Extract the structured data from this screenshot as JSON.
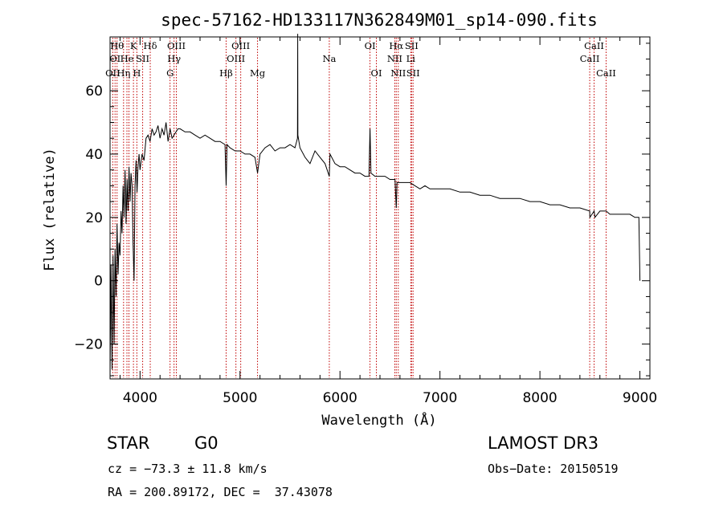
{
  "chart_data": {
    "type": "line",
    "title": "spec-57162-HD133117N362849M01_sp14-090.fits",
    "xlabel": "Wavelength (Å)",
    "ylabel": "Flux (relative)",
    "xlim": [
      3700,
      9100
    ],
    "ylim": [
      -31,
      77
    ],
    "xticks": [
      4000,
      5000,
      6000,
      7000,
      8000,
      9000
    ],
    "yticks": [
      -20,
      0,
      20,
      40,
      60
    ],
    "grid": false,
    "series": [
      {
        "name": "flux",
        "x": [
          3700,
          3710,
          3720,
          3730,
          3740,
          3750,
          3760,
          3770,
          3780,
          3790,
          3800,
          3810,
          3820,
          3830,
          3840,
          3850,
          3860,
          3870,
          3880,
          3890,
          3900,
          3910,
          3920,
          3930,
          3940,
          3950,
          3960,
          3970,
          3980,
          3990,
          4000,
          4020,
          4040,
          4060,
          4080,
          4100,
          4120,
          4140,
          4160,
          4180,
          4200,
          4220,
          4240,
          4260,
          4280,
          4300,
          4320,
          4340,
          4360,
          4380,
          4400,
          4450,
          4500,
          4550,
          4600,
          4650,
          4700,
          4750,
          4800,
          4850,
          4861,
          4870,
          4900,
          4950,
          5000,
          5050,
          5100,
          5150,
          5175,
          5200,
          5250,
          5300,
          5350,
          5400,
          5450,
          5500,
          5550,
          5575,
          5577,
          5579,
          5600,
          5650,
          5700,
          5750,
          5800,
          5850,
          5893,
          5900,
          5950,
          6000,
          6050,
          6100,
          6150,
          6200,
          6250,
          6290,
          6300,
          6310,
          6350,
          6400,
          6450,
          6500,
          6550,
          6563,
          6570,
          6600,
          6650,
          6700,
          6750,
          6800,
          6850,
          6900,
          6950,
          7000,
          7100,
          7200,
          7300,
          7400,
          7500,
          7600,
          7700,
          7800,
          7900,
          8000,
          8100,
          8200,
          8300,
          8400,
          8498,
          8500,
          8542,
          8550,
          8600,
          8662,
          8700,
          8800,
          8900,
          8950,
          8990,
          9000
        ],
        "values": [
          -30,
          5,
          -28,
          8,
          -20,
          10,
          -5,
          18,
          2,
          12,
          8,
          22,
          15,
          30,
          20,
          35,
          18,
          32,
          22,
          36,
          25,
          34,
          30,
          12,
          0,
          30,
          38,
          28,
          36,
          40,
          35,
          40,
          38,
          45,
          46,
          44,
          48,
          46,
          47,
          49,
          45,
          48,
          46,
          50,
          44,
          48,
          45,
          46,
          47,
          48,
          48,
          47,
          47,
          46,
          45,
          46,
          45,
          44,
          44,
          43,
          30,
          43,
          42,
          41,
          41,
          40,
          40,
          39,
          34,
          40,
          42,
          43,
          41,
          42,
          42,
          43,
          42,
          45,
          78,
          46,
          42,
          39,
          37,
          41,
          39,
          37,
          33,
          40,
          37,
          36,
          36,
          35,
          34,
          34,
          33,
          33,
          48,
          34,
          33,
          33,
          33,
          32,
          32,
          23,
          31,
          31,
          31,
          31,
          30,
          29,
          30,
          29,
          29,
          29,
          29,
          28,
          28,
          27,
          27,
          26,
          26,
          26,
          25,
          25,
          24,
          24,
          23,
          23,
          22,
          20,
          22,
          20,
          22,
          22,
          21,
          21,
          21,
          20,
          20,
          0
        ]
      }
    ],
    "line_markers": [
      {
        "wavelength": 3727,
        "label": "OII",
        "row": 3
      },
      {
        "wavelength": 3750,
        "label": "OI",
        "row": 2
      },
      {
        "wavelength": 3770,
        "label": "Hθ",
        "row": 1
      },
      {
        "wavelength": 3835,
        "label": "Hη",
        "row": 3
      },
      {
        "wavelength": 3869,
        "label": "He",
        "row": 2
      },
      {
        "wavelength": 3889,
        "label": "",
        "row": 0
      },
      {
        "wavelength": 3934,
        "label": "K",
        "row": 1
      },
      {
        "wavelength": 3968,
        "label": "H",
        "row": 3
      },
      {
        "wavelength": 4026,
        "label": "SII",
        "row": 2
      },
      {
        "wavelength": 4102,
        "label": "Hδ",
        "row": 1
      },
      {
        "wavelength": 4300,
        "label": "G",
        "row": 3
      },
      {
        "wavelength": 4340,
        "label": "Hγ",
        "row": 2
      },
      {
        "wavelength": 4363,
        "label": "OIII",
        "row": 1
      },
      {
        "wavelength": 4861,
        "label": "Hβ",
        "row": 3
      },
      {
        "wavelength": 4959,
        "label": "OIII",
        "row": 2
      },
      {
        "wavelength": 5007,
        "label": "OIII",
        "row": 1
      },
      {
        "wavelength": 5175,
        "label": "Mg",
        "row": 3
      },
      {
        "wavelength": 5893,
        "label": "Na",
        "row": 2
      },
      {
        "wavelength": 6300,
        "label": "OI",
        "row": 1
      },
      {
        "wavelength": 6364,
        "label": "OI",
        "row": 3
      },
      {
        "wavelength": 6548,
        "label": "NII",
        "row": 2
      },
      {
        "wavelength": 6563,
        "label": "Hα",
        "row": 1
      },
      {
        "wavelength": 6583,
        "label": "NII",
        "row": 3
      },
      {
        "wavelength": 6708,
        "label": "Li",
        "row": 2
      },
      {
        "wavelength": 6716,
        "label": "SII",
        "row": 1
      },
      {
        "wavelength": 6731,
        "label": "SII",
        "row": 3
      },
      {
        "wavelength": 8498,
        "label": "CaII",
        "row": 2
      },
      {
        "wavelength": 8542,
        "label": "CaII",
        "row": 1
      },
      {
        "wavelength": 8662,
        "label": "CaII",
        "row": 3
      }
    ],
    "colors": {
      "marker_line": "#c00000",
      "spectrum": "#000000"
    }
  },
  "info": {
    "object_class": "STAR",
    "subclass": "G0",
    "survey": "LAMOST DR3",
    "cz": "cz = −73.3 ± 11.8 km/s",
    "obs_date": "Obs−Date: 20150519",
    "radec": "RA = 200.89172, DEC =  37.43078"
  }
}
